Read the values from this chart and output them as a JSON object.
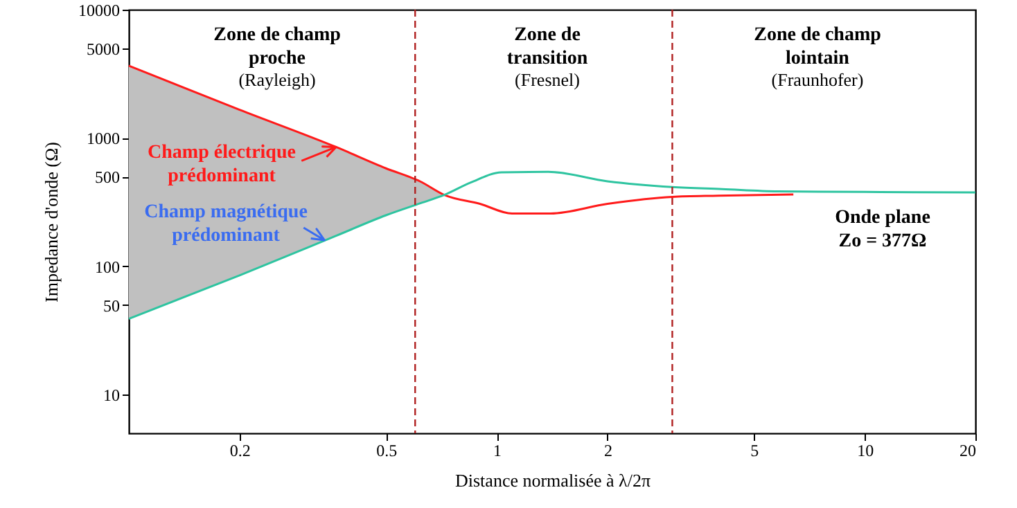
{
  "chart_data": {
    "type": "line",
    "xlabel": "Distance normalisée à λ/2π",
    "ylabel": "Impedance d'onde (Ω)",
    "log": "xy",
    "grid": false,
    "line_style": "solid",
    "marker": "none",
    "xlim": [
      0.1,
      20
    ],
    "xticks": [
      0.2,
      0.5,
      1,
      2,
      5,
      10,
      20
    ],
    "ylim": [
      5,
      10000
    ],
    "yticks": [
      10,
      50,
      100,
      500,
      1000,
      5000,
      10000
    ],
    "series": [
      {
        "color": "#ff1a1a",
        "x": [
          0.1,
          0.2,
          0.366,
          0.5,
          0.62,
          0.72,
          0.9,
          1.1,
          1.4,
          2,
          3,
          4,
          6.4
        ],
        "values": [
          3660,
          1660,
          850,
          580,
          458,
          360,
          307,
          258,
          258,
          307,
          348,
          355,
          363
        ],
        "lower": [
          39,
          85,
          173,
          250,
          310,
          360,
          null,
          null,
          null,
          null,
          null,
          null,
          null
        ],
        "upper": [
          3660,
          1660,
          850,
          580,
          458,
          360,
          null,
          null,
          null,
          null,
          null,
          null,
          null
        ]
      },
      {
        "color": "#2ec4a0",
        "x": [
          0.1,
          0.2,
          0.366,
          0.5,
          0.62,
          0.72,
          0.85,
          1.03,
          1.38,
          2,
          3,
          4.1,
          5.8,
          10,
          20
        ],
        "values": [
          39,
          85,
          173,
          250,
          310,
          360,
          450,
          540,
          545,
          460,
          415,
          400,
          384,
          380,
          377
        ]
      }
    ],
    "ref_lines": [
      {
        "axis": "x",
        "value": 0.6,
        "color": "#b02020",
        "line_style": "dashed"
      },
      {
        "axis": "x",
        "value": 3,
        "color": "#b02020",
        "line_style": "dashed"
      }
    ],
    "annotations": [
      "Zone de champ\nproche",
      "(Rayleigh)",
      "Zone de\ntransition",
      "(Fresnel)",
      "Zone de champ\nlointain",
      "(Fraunhofer)",
      {
        "text": "Champ électrique\nprédominant",
        "x": 0.366,
        "y": 850
      },
      {
        "text": "Champ magnétique\nprédominant",
        "x": 0.34,
        "y": 160
      },
      "Onde plane\nZo = 377Ω"
    ]
  }
}
